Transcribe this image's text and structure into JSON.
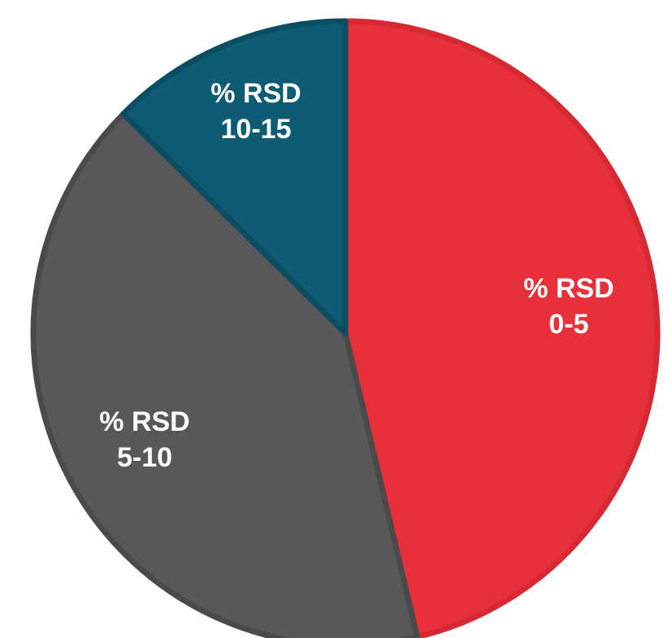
{
  "chart_data": {
    "type": "pie",
    "title": "",
    "slices": [
      {
        "label_line1": "% RSD",
        "label_line2": "0-5",
        "value": 46.3,
        "color": "#E8303A",
        "edge_color": "#D52A33"
      },
      {
        "label_line1": "% RSD",
        "label_line2": "5-10",
        "value": 41.1,
        "color": "#58585A",
        "edge_color": "#4A4A4C"
      },
      {
        "label_line1": "% RSD",
        "label_line2": "10-15",
        "value": 12.6,
        "color": "#0E5C74",
        "edge_color": "#0B4E63"
      }
    ],
    "start_angle_deg": 0,
    "direction": "clockwise",
    "legend": "none",
    "label_position": "inside"
  }
}
